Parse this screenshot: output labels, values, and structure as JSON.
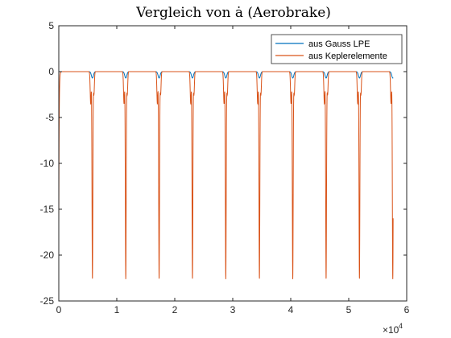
{
  "chart_data": {
    "type": "line",
    "title": "Vergleich von ȧ (Aerobrake)",
    "xlabel": "",
    "ylabel": "",
    "xlim": [
      0,
      60000
    ],
    "ylim": [
      -25,
      5
    ],
    "x_ticks": [
      0,
      10000,
      20000,
      30000,
      40000,
      50000,
      60000
    ],
    "x_tick_labels": [
      "0",
      "1",
      "2",
      "3",
      "4",
      "5",
      "6"
    ],
    "x_exponent_label": "×10",
    "x_exponent_power": "4",
    "y_ticks": [
      5,
      0,
      -5,
      -10,
      -15,
      -20,
      -25
    ],
    "y_tick_labels": [
      "5",
      "0",
      "-5",
      "-10",
      "-15",
      "-20",
      "-25"
    ],
    "grid": false,
    "legend_position": "top-right",
    "dip_centers": [
      5800,
      11550,
      17300,
      23050,
      28800,
      34600,
      40350,
      46100,
      51850,
      57600
    ],
    "series": [
      {
        "name": "aus Gauss LPE",
        "color": "#0072BD",
        "baseline": 0,
        "dip_depth": -0.7,
        "dip_width": 250
      },
      {
        "name": "aus Keplerelemente",
        "color": "#D95319",
        "baseline": 0,
        "dip_depth": -22.6,
        "dip_width": 150,
        "start_value": -17
      }
    ]
  }
}
